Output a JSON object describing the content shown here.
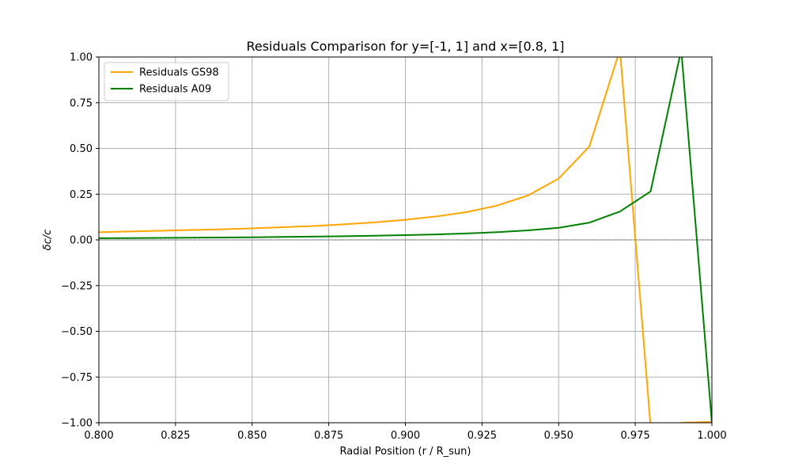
{
  "chart_data": {
    "type": "line",
    "title": "Residuals Comparison for y=[-1, 1] and x=[0.8, 1]",
    "xlabel": "Radial Position (r / R_sun)",
    "ylabel": "δc/c",
    "xlim": [
      0.8,
      1.0
    ],
    "ylim": [
      -1.0,
      1.0
    ],
    "xticks": [
      0.8,
      0.825,
      0.85,
      0.875,
      0.9,
      0.925,
      0.95,
      0.975,
      1.0
    ],
    "xtick_labels": [
      "0.800",
      "0.825",
      "0.850",
      "0.875",
      "0.900",
      "0.925",
      "0.950",
      "0.975",
      "1.000"
    ],
    "yticks": [
      -1.0,
      -0.75,
      -0.5,
      -0.25,
      0.0,
      0.25,
      0.5,
      0.75,
      1.0
    ],
    "ytick_labels": [
      "−1.00",
      "−0.75",
      "−0.50",
      "−0.25",
      "0.00",
      "0.25",
      "0.50",
      "0.75",
      "1.00"
    ],
    "grid": true,
    "zero_line": true,
    "legend_position": "top-left",
    "series": [
      {
        "name": "Residuals GS98",
        "color": "#FFA500",
        "x": [
          0.8,
          0.81,
          0.82,
          0.83,
          0.84,
          0.85,
          0.86,
          0.87,
          0.88,
          0.89,
          0.9,
          0.91,
          0.92,
          0.93,
          0.94,
          0.95,
          0.96,
          0.97,
          0.98,
          0.99,
          1.0
        ],
        "y": [
          0.042,
          0.046,
          0.05,
          0.054,
          0.058,
          0.063,
          0.069,
          0.076,
          0.085,
          0.096,
          0.11,
          0.128,
          0.152,
          0.188,
          0.243,
          0.335,
          0.51,
          1.04,
          -1.02,
          -1.0,
          -0.995
        ]
      },
      {
        "name": "Residuals A09",
        "color": "#008000",
        "x": [
          0.8,
          0.81,
          0.82,
          0.83,
          0.84,
          0.85,
          0.86,
          0.87,
          0.88,
          0.89,
          0.9,
          0.91,
          0.92,
          0.93,
          0.94,
          0.95,
          0.96,
          0.97,
          0.98,
          0.99,
          1.0
        ],
        "y": [
          0.009,
          0.01,
          0.011,
          0.012,
          0.013,
          0.014,
          0.016,
          0.018,
          0.02,
          0.023,
          0.026,
          0.03,
          0.035,
          0.042,
          0.052,
          0.066,
          0.094,
          0.155,
          0.265,
          1.04,
          -1.0
        ]
      }
    ]
  }
}
